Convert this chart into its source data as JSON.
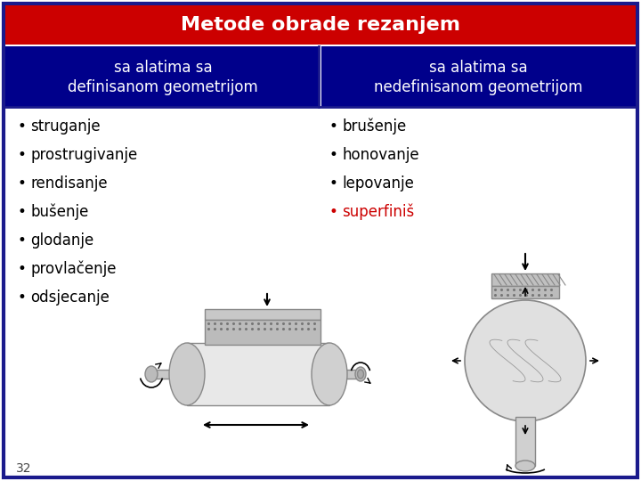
{
  "title": "Metode obrade rezanjem",
  "title_bg": "#cc0000",
  "title_fg": "#ffffff",
  "header_bg": "#00008b",
  "header_fg": "#ffffff",
  "col1_header_line1": "sa alatima sa",
  "col1_header_line2": "definisanom geometrijom",
  "col2_header_line1": "sa alatima sa",
  "col2_header_line2": "nedefinisanom geometrijom",
  "col1_items": [
    "struganje",
    "prostrugivanje",
    "rendisanje",
    "bušenje",
    "glodanje",
    "provlačenje",
    "odsjecanje"
  ],
  "col2_items": [
    "brušenje",
    "honovanje",
    "lepovanje",
    "superfiniš"
  ],
  "col2_special_item": "superfiniš",
  "col2_special_color": "#cc0000",
  "normal_color": "#000000",
  "bullet_color": "#000000",
  "special_bullet_color": "#cc0000",
  "page_number": "32",
  "border_color": "#1a1a8c",
  "bg_color": "#ffffff",
  "sketch_color": "#888888",
  "sketch_light": "#d8d8d8",
  "sketch_dark": "#aaaaaa"
}
